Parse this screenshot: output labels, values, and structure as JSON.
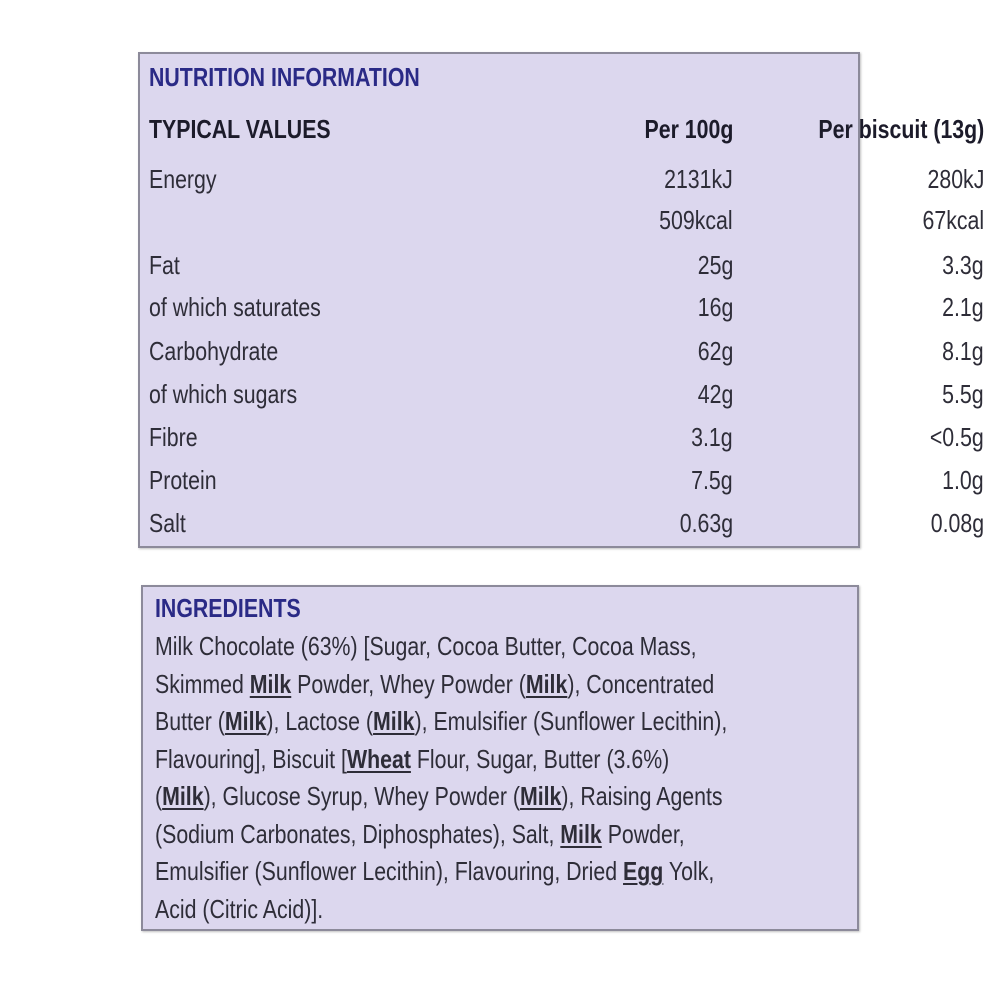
{
  "nutrition": {
    "title": "NUTRITION INFORMATION",
    "header": [
      "TYPICAL VALUES",
      "Per 100g",
      "Per biscuit (13g)"
    ],
    "rows": [
      [
        "Energy",
        "2131kJ",
        "280kJ"
      ],
      [
        null,
        "509kcal",
        "67kcal"
      ],
      [
        "Fat",
        "25g",
        "3.3g"
      ],
      [
        "of which saturates",
        "16g",
        "2.1g"
      ],
      [
        "Carbohydrate",
        "62g",
        "8.1g"
      ],
      [
        "of which sugars",
        "42g",
        "5.5g"
      ],
      [
        "Fibre",
        "3.1g",
        "<0.5g"
      ],
      [
        "Protein",
        "7.5g",
        "1.0g"
      ],
      [
        "Salt",
        "0.63g",
        "0.08g"
      ]
    ]
  },
  "ingredients": {
    "title": "INGREDIENTS",
    "lines": [
      [
        {
          "text": "Milk Chocolate (63%) [Sugar, Cocoa Butter, Cocoa Mass,",
          "allergen": false
        }
      ],
      [
        {
          "text": "Skimmed ",
          "allergen": false
        },
        {
          "text": "Milk",
          "allergen": true
        },
        {
          "text": " Powder, Whey Powder (",
          "allergen": false
        },
        {
          "text": "Milk",
          "allergen": true
        },
        {
          "text": "), Concentrated",
          "allergen": false
        }
      ],
      [
        {
          "text": "Butter (",
          "allergen": false
        },
        {
          "text": "Milk",
          "allergen": true
        },
        {
          "text": "), Lactose (",
          "allergen": false
        },
        {
          "text": "Milk",
          "allergen": true
        },
        {
          "text": "), Emulsifier (Sunflower Lecithin),",
          "allergen": false
        }
      ],
      [
        {
          "text": "Flavouring], Biscuit [",
          "allergen": false
        },
        {
          "text": "Wheat",
          "allergen": true
        },
        {
          "text": " Flour, Sugar, Butter (3.6%)",
          "allergen": false
        }
      ],
      [
        {
          "text": "(",
          "allergen": false
        },
        {
          "text": "Milk",
          "allergen": true
        },
        {
          "text": "), Glucose Syrup, Whey Powder (",
          "allergen": false
        },
        {
          "text": "Milk",
          "allergen": true
        },
        {
          "text": "), Raising Agents",
          "allergen": false
        }
      ],
      [
        {
          "text": "(Sodium Carbonates, Diphosphates), Salt, ",
          "allergen": false
        },
        {
          "text": "Milk",
          "allergen": true
        },
        {
          "text": " Powder,",
          "allergen": false
        }
      ],
      [
        {
          "text": "Emulsifier (Sunflower Lecithin), Flavouring, Dried ",
          "allergen": false
        },
        {
          "text": "Egg",
          "allergen": true
        },
        {
          "text": " Yolk,",
          "allergen": false
        }
      ],
      [
        {
          "text": "Acid (Citric Acid)].",
          "allergen": false
        }
      ]
    ]
  }
}
